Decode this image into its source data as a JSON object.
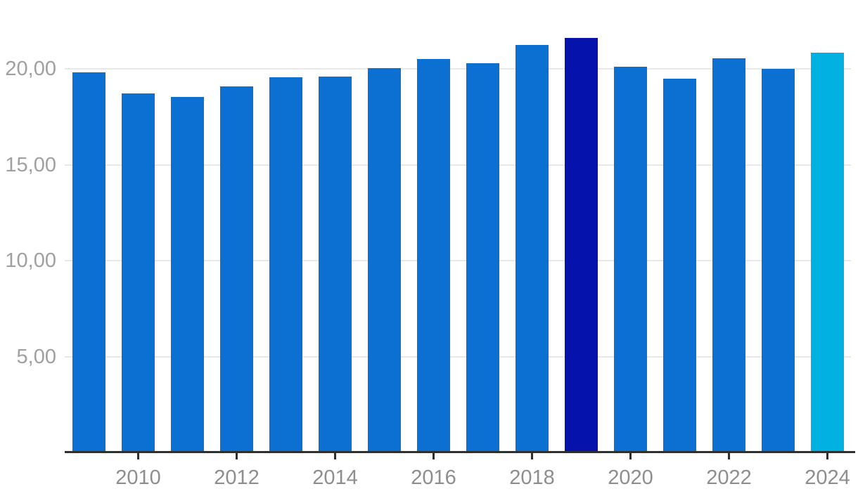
{
  "chart_data": {
    "type": "bar",
    "title": "",
    "xlabel": "",
    "ylabel": "",
    "categories": [
      "2009",
      "2010",
      "2011",
      "2012",
      "2013",
      "2014",
      "2015",
      "2016",
      "2017",
      "2018",
      "2019",
      "2020",
      "2021",
      "2022",
      "2023",
      "2024"
    ],
    "values": [
      19.8,
      18.7,
      18.55,
      19.1,
      19.55,
      19.6,
      20.05,
      20.5,
      20.3,
      21.25,
      21.6,
      20.1,
      19.5,
      20.55,
      20.0,
      20.85
    ],
    "highlighted_categories": [
      "2019",
      "2024"
    ],
    "bar_colors": [
      "#0b70d2",
      "#0b70d2",
      "#0b70d2",
      "#0b70d2",
      "#0b70d2",
      "#0b70d2",
      "#0b70d2",
      "#0b70d2",
      "#0b70d2",
      "#0b70d2",
      "#0512ab",
      "#0b70d2",
      "#0b70d2",
      "#0b70d2",
      "#0b70d2",
      "#00b1e2"
    ],
    "y_axis": {
      "ticks": [
        {
          "value": 5,
          "label": "5,00"
        },
        {
          "value": 10,
          "label": "10,00"
        },
        {
          "value": 15,
          "label": "15,00"
        },
        {
          "value": 20,
          "label": "20,00"
        }
      ],
      "range": [
        0,
        23.5
      ],
      "gridlines": true,
      "number_format": "decimal-comma"
    },
    "x_axis": {
      "ticks": [
        "2010",
        "2012",
        "2014",
        "2016",
        "2018",
        "2020",
        "2022",
        "2024"
      ]
    },
    "legend": null,
    "colors": {
      "bar_default": "#0b70d2",
      "bar_highlight_dark": "#0512ab",
      "bar_highlight_cyan": "#00b1e2",
      "grid": "#e8e8e8",
      "axis": "#2f2f2f",
      "y_label_text": "#a0a0a0",
      "x_label_text": "#8e8e8e",
      "background": "#ffffff"
    }
  }
}
